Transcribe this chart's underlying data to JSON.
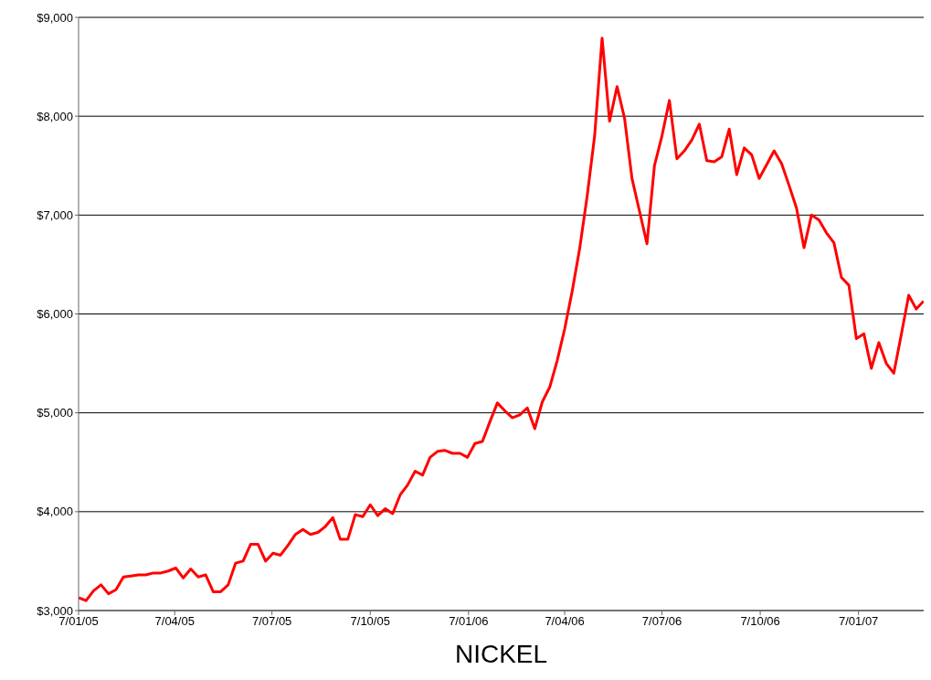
{
  "chart_data": {
    "type": "line",
    "title": "NICKEL",
    "x": [
      "2005-01-07",
      "2005-01-14",
      "2005-01-21",
      "2005-01-28",
      "2005-02-04",
      "2005-02-11",
      "2005-02-18",
      "2005-02-25",
      "2005-03-04",
      "2005-03-11",
      "2005-03-18",
      "2005-03-25",
      "2005-04-01",
      "2005-04-08",
      "2005-04-15",
      "2005-04-22",
      "2005-04-29",
      "2005-05-06",
      "2005-05-13",
      "2005-05-20",
      "2005-05-27",
      "2005-06-03",
      "2005-06-10",
      "2005-06-17",
      "2005-06-24",
      "2005-07-01",
      "2005-07-08",
      "2005-07-15",
      "2005-07-22",
      "2005-07-29",
      "2005-08-05",
      "2005-08-12",
      "2005-08-19",
      "2005-08-26",
      "2005-09-02",
      "2005-09-09",
      "2005-09-16",
      "2005-09-23",
      "2005-09-30",
      "2005-10-07",
      "2005-10-14",
      "2005-10-21",
      "2005-10-28",
      "2005-11-04",
      "2005-11-11",
      "2005-11-18",
      "2005-11-25",
      "2005-12-02",
      "2005-12-09",
      "2005-12-16",
      "2005-12-23",
      "2005-12-30",
      "2006-01-06",
      "2006-01-13",
      "2006-01-20",
      "2006-01-27",
      "2006-02-03",
      "2006-02-10",
      "2006-02-17",
      "2006-02-24",
      "2006-03-03",
      "2006-03-10",
      "2006-03-17",
      "2006-03-24",
      "2006-03-31",
      "2006-04-07",
      "2006-04-14",
      "2006-04-21",
      "2006-04-28",
      "2006-05-05",
      "2006-05-12",
      "2006-05-19",
      "2006-05-26",
      "2006-06-02",
      "2006-06-09",
      "2006-06-16",
      "2006-06-23",
      "2006-06-30",
      "2006-07-07",
      "2006-07-14",
      "2006-07-21",
      "2006-07-28",
      "2006-08-04",
      "2006-08-11",
      "2006-08-18",
      "2006-08-25",
      "2006-09-01",
      "2006-09-08",
      "2006-09-15",
      "2006-09-22",
      "2006-09-29",
      "2006-10-06",
      "2006-10-13",
      "2006-10-20",
      "2006-10-27",
      "2006-11-03",
      "2006-11-10",
      "2006-11-17",
      "2006-11-24",
      "2006-12-01",
      "2006-12-08",
      "2006-12-15",
      "2006-12-22",
      "2006-12-29",
      "2007-01-05",
      "2007-01-12",
      "2007-01-19",
      "2007-01-26",
      "2007-02-02",
      "2007-02-09",
      "2007-02-16",
      "2007-02-23",
      "2007-03-02",
      "2007-03-09"
    ],
    "series": [
      {
        "color": "#ff0000",
        "values": [
          3130,
          3100,
          3200,
          3260,
          3170,
          3210,
          3340,
          3350,
          3360,
          3360,
          3380,
          3380,
          3400,
          3430,
          3330,
          3420,
          3340,
          3360,
          3190,
          3190,
          3260,
          3480,
          3500,
          3670,
          3670,
          3500,
          3580,
          3560,
          3660,
          3770,
          3820,
          3770,
          3790,
          3850,
          3940,
          3720,
          3720,
          3970,
          3950,
          4070,
          3960,
          4030,
          3980,
          4170,
          4270,
          4410,
          4370,
          4550,
          4610,
          4620,
          4590,
          4590,
          4550,
          4690,
          4710,
          4910,
          5100,
          5020,
          4950,
          4980,
          5050,
          4840,
          5110,
          5260,
          5530,
          5850,
          6230,
          6660,
          7190,
          7800,
          8790,
          7950,
          8300,
          7980,
          7370,
          7040,
          6710,
          7500,
          7800,
          8160,
          7570,
          7650,
          7760,
          7920,
          7550,
          7540,
          7590,
          7870,
          7410,
          7680,
          7610,
          7370,
          7510,
          7650,
          7520,
          7300,
          7070,
          6670,
          7000,
          6950,
          6820,
          6720,
          6370,
          6290,
          5750,
          5800,
          5450,
          5710,
          5500,
          5400,
          5790,
          6190,
          6050,
          6130
        ]
      }
    ],
    "xlim": [
      "2005-01-07",
      "2007-03-09"
    ],
    "xticks": [
      {
        "value": "2005-01-07",
        "label": "7/01/05"
      },
      {
        "value": "2005-04-07",
        "label": "7/04/05"
      },
      {
        "value": "2005-07-07",
        "label": "7/07/05"
      },
      {
        "value": "2005-10-07",
        "label": "7/10/05"
      },
      {
        "value": "2006-01-07",
        "label": "7/01/06"
      },
      {
        "value": "2006-04-07",
        "label": "7/04/06"
      },
      {
        "value": "2006-07-07",
        "label": "7/07/06"
      },
      {
        "value": "2006-10-07",
        "label": "7/10/06"
      },
      {
        "value": "2007-01-07",
        "label": "7/01/07"
      }
    ],
    "ylim": [
      3000,
      9000
    ],
    "yticks": [
      {
        "value": 3000,
        "label": "$3,000"
      },
      {
        "value": 4000,
        "label": "$4,000"
      },
      {
        "value": 5000,
        "label": "$5,000"
      },
      {
        "value": 6000,
        "label": "$6,000"
      },
      {
        "value": 7000,
        "label": "$7,000"
      },
      {
        "value": 8000,
        "label": "$8,000"
      },
      {
        "value": 9000,
        "label": "$9,000"
      }
    ],
    "grid": "y",
    "legend": false,
    "marker": "none",
    "line_style": "solid"
  }
}
